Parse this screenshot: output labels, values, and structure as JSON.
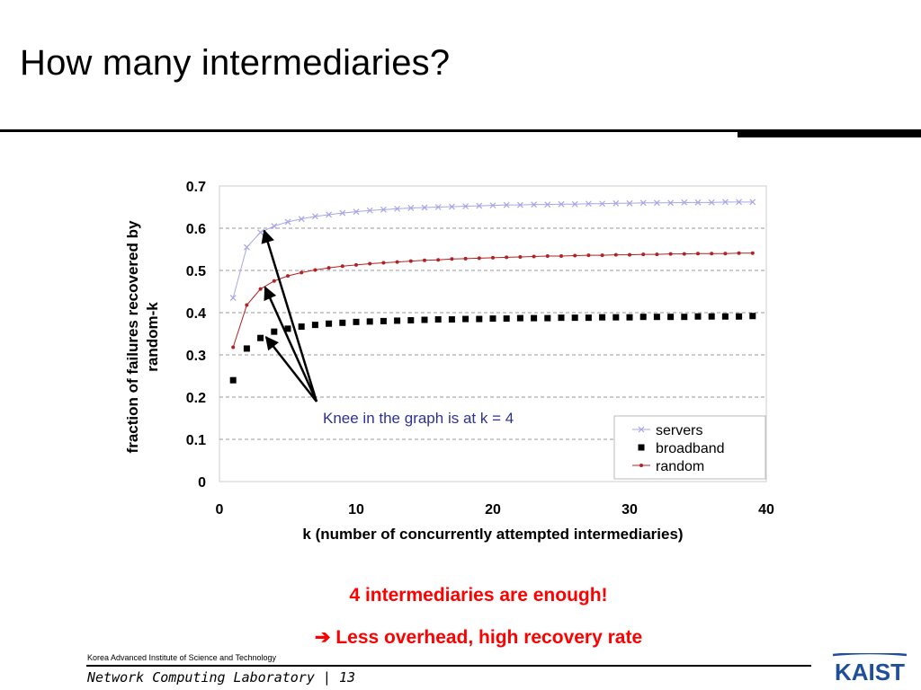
{
  "slide": {
    "title": "How many intermediaries?",
    "conclusion_line1": "4 intermediaries are enough!",
    "conclusion_arrow": "➔",
    "conclusion_line2": "Less overhead, high recovery rate"
  },
  "footer": {
    "institution": "Korea Advanced Institute of Science and Technology",
    "lab": "Network Computing Laboratory | 13",
    "logo_text": "KAIST"
  },
  "colors": {
    "servers": "#a6a6e6",
    "broadband": "#000000",
    "random": "#b22222",
    "annotation": "#2e3192",
    "conclusion": "#ff0000",
    "logo": "#1f4e9a"
  },
  "chart_data": {
    "type": "line",
    "xlabel": "k (number of concurrently attempted intermediaries)",
    "ylabel": "fraction of failures recovered by random-k",
    "xlim": [
      0,
      40
    ],
    "ylim": [
      0,
      0.7
    ],
    "xticks": [
      0,
      10,
      20,
      30,
      40
    ],
    "yticks": [
      0,
      0.1,
      0.2,
      0.3,
      0.4,
      0.5,
      0.6,
      0.7
    ],
    "ytick_labels": [
      "0",
      "0.1",
      "0.2",
      "0.3",
      "0.4",
      "0.5",
      "0.6",
      "0.7"
    ],
    "grid": "horizontal dashed",
    "legend_position": "bottom-right",
    "x": [
      1,
      2,
      3,
      4,
      5,
      6,
      7,
      8,
      9,
      10,
      11,
      12,
      13,
      14,
      15,
      16,
      17,
      18,
      19,
      20,
      21,
      22,
      23,
      24,
      25,
      26,
      27,
      28,
      29,
      30,
      31,
      32,
      33,
      34,
      35,
      36,
      37,
      38,
      39
    ],
    "series": [
      {
        "name": "servers",
        "marker": "x",
        "values": [
          0.435,
          0.555,
          0.59,
          0.605,
          0.615,
          0.622,
          0.628,
          0.632,
          0.636,
          0.639,
          0.642,
          0.644,
          0.646,
          0.648,
          0.649,
          0.65,
          0.651,
          0.652,
          0.653,
          0.654,
          0.655,
          0.655,
          0.656,
          0.656,
          0.657,
          0.657,
          0.658,
          0.658,
          0.659,
          0.659,
          0.66,
          0.66,
          0.66,
          0.661,
          0.661,
          0.661,
          0.662,
          0.662,
          0.662
        ]
      },
      {
        "name": "broadband",
        "marker": "square",
        "values": [
          0.24,
          0.315,
          0.34,
          0.355,
          0.362,
          0.367,
          0.371,
          0.374,
          0.376,
          0.378,
          0.379,
          0.38,
          0.381,
          0.382,
          0.383,
          0.384,
          0.384,
          0.385,
          0.385,
          0.386,
          0.386,
          0.387,
          0.387,
          0.387,
          0.388,
          0.388,
          0.388,
          0.389,
          0.389,
          0.389,
          0.39,
          0.39,
          0.39,
          0.39,
          0.391,
          0.391,
          0.391,
          0.391,
          0.392
        ]
      },
      {
        "name": "random",
        "marker": "dot",
        "values": [
          0.318,
          0.418,
          0.456,
          0.475,
          0.487,
          0.495,
          0.501,
          0.506,
          0.51,
          0.513,
          0.516,
          0.518,
          0.52,
          0.522,
          0.524,
          0.525,
          0.527,
          0.528,
          0.529,
          0.53,
          0.531,
          0.532,
          0.533,
          0.534,
          0.534,
          0.535,
          0.536,
          0.536,
          0.537,
          0.537,
          0.538,
          0.538,
          0.539,
          0.539,
          0.54,
          0.54,
          0.54,
          0.541,
          0.541
        ]
      }
    ],
    "annotation": {
      "text": "Knee in the graph is at k = 4",
      "points_to": [
        {
          "series": "servers",
          "x": 4
        },
        {
          "series": "random",
          "x": 4
        },
        {
          "series": "broadband",
          "x": 4
        }
      ]
    }
  }
}
